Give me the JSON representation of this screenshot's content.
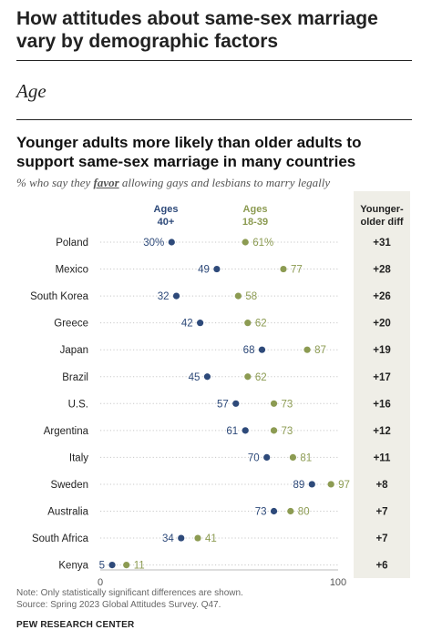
{
  "main_title": "How attitudes about same-sex marriage vary by demographic factors",
  "section_label": "Age",
  "subtitle": {
    "before": "% who say they ",
    "emphasis": "favor",
    "after": " allowing gays and lesbians to marry legally"
  },
  "note": "Note: Only statistically significant differences are shown.",
  "source": "Source: Spring 2023 Global Attitudes Survey. Q47.",
  "brand": "PEW RESEARCH CENTER",
  "colors": {
    "older": "#2e4a7a",
    "younger": "#8c9b52",
    "diff_bg": "#efeee7"
  },
  "chart_data": {
    "type": "dot",
    "title": "Younger adults more likely than older adults to support same-sex marriage in many countries",
    "xlim": [
      0,
      100
    ],
    "x_ticks": [
      0,
      100
    ],
    "categories": [
      "Poland",
      "Mexico",
      "South Korea",
      "Greece",
      "Japan",
      "Brazil",
      "U.S.",
      "Argentina",
      "Italy",
      "Sweden",
      "Australia",
      "South Africa",
      "Kenya"
    ],
    "series": [
      {
        "name": "Ages 40+",
        "color": "#2e4a7a",
        "labels": [
          "30%",
          "49",
          "32",
          "42",
          "68",
          "45",
          "57",
          "61",
          "70",
          "89",
          "73",
          "34",
          "5"
        ],
        "values": [
          30,
          49,
          32,
          42,
          68,
          45,
          57,
          61,
          70,
          89,
          73,
          34,
          5
        ]
      },
      {
        "name": "Ages 18-39",
        "color": "#8c9b52",
        "labels": [
          "61%",
          "77",
          "58",
          "62",
          "87",
          "62",
          "73",
          "73",
          "81",
          "97",
          "80",
          "41",
          "11"
        ],
        "values": [
          61,
          77,
          58,
          62,
          87,
          62,
          73,
          73,
          81,
          97,
          80,
          41,
          11
        ]
      }
    ],
    "legend": [
      {
        "line1": "Ages",
        "line2": "40+"
      },
      {
        "line1": "Ages",
        "line2": "18-39"
      }
    ],
    "diff": {
      "header_line1": "Younger-",
      "header_line2": "older diff",
      "values": [
        "+31",
        "+28",
        "+26",
        "+20",
        "+19",
        "+17",
        "+16",
        "+12",
        "+11",
        "+8",
        "+7",
        "+7",
        "+6"
      ]
    }
  }
}
